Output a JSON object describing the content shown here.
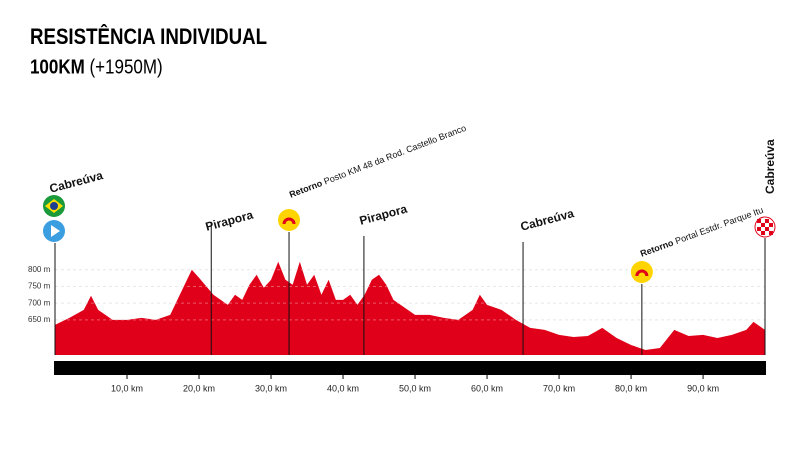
{
  "chart_data": {
    "type": "area",
    "title": "RESISTÊNCIA INDIVIDUAL",
    "distance": "100KM",
    "climb": "(+1950M)",
    "color": "#e1001a",
    "x": [
      0,
      2,
      4,
      5,
      6,
      8,
      10,
      12,
      14,
      16,
      18,
      19,
      20,
      22,
      24,
      25,
      26,
      27,
      28,
      29,
      30,
      31,
      32,
      33,
      34,
      35,
      36,
      37,
      38,
      39,
      40,
      41,
      42,
      43,
      44,
      45,
      46,
      47,
      48,
      50,
      52,
      54,
      56,
      58,
      59,
      60,
      62,
      64,
      66,
      68,
      70,
      72,
      74,
      76,
      78,
      80,
      82,
      84,
      86,
      88,
      90,
      92,
      94,
      96,
      97,
      98.6
    ],
    "values": [
      635,
      656,
      680,
      722,
      680,
      650,
      650,
      656,
      650,
      665,
      755,
      800,
      776,
      725,
      695,
      725,
      710,
      755,
      785,
      746,
      770,
      824,
      770,
      755,
      824,
      755,
      785,
      725,
      770,
      710,
      710,
      725,
      695,
      725,
      770,
      785,
      755,
      710,
      695,
      665,
      665,
      656,
      650,
      680,
      725,
      695,
      680,
      650,
      626,
      620,
      605,
      599,
      602,
      626,
      596,
      575,
      560,
      566,
      620,
      602,
      605,
      596,
      605,
      620,
      644,
      620
    ],
    "xlim": [
      0,
      98.6
    ],
    "ylim": [
      545,
      850
    ],
    "xticks": [
      {
        "value": 10,
        "label": "10,0 km"
      },
      {
        "value": 20,
        "label": "20,0 km"
      },
      {
        "value": 30,
        "label": "30,0 km"
      },
      {
        "value": 40,
        "label": "40,0 km"
      },
      {
        "value": 50,
        "label": "50,0 km"
      },
      {
        "value": 60,
        "label": "60,0 km"
      },
      {
        "value": 70,
        "label": "70,0 km"
      },
      {
        "value": 80,
        "label": "80,0 km"
      },
      {
        "value": 90,
        "label": "90,0 km"
      }
    ],
    "yticks": [
      {
        "value": 650,
        "label": "650 m"
      },
      {
        "value": 700,
        "label": "700 m"
      },
      {
        "value": 750,
        "label": "750 m"
      },
      {
        "value": 800,
        "label": "800 m"
      }
    ],
    "grid": true,
    "annotations": [
      {
        "x": 0,
        "text": "Cabreúva"
      },
      {
        "x": 21.7,
        "text": "Pirapora"
      },
      {
        "x": 32.5,
        "prefix": "Retorno",
        "text": "Posto KM 48 da Rod. Castello Branco"
      },
      {
        "x": 42.9,
        "text": "Pirapora"
      },
      {
        "x": 65,
        "text": "Cabreúva"
      },
      {
        "x": 81.5,
        "prefix": "Retorno",
        "text": "Portal Estdr. Parque Itu"
      },
      {
        "x": 98.6,
        "text": "Cabreúva"
      }
    ]
  }
}
